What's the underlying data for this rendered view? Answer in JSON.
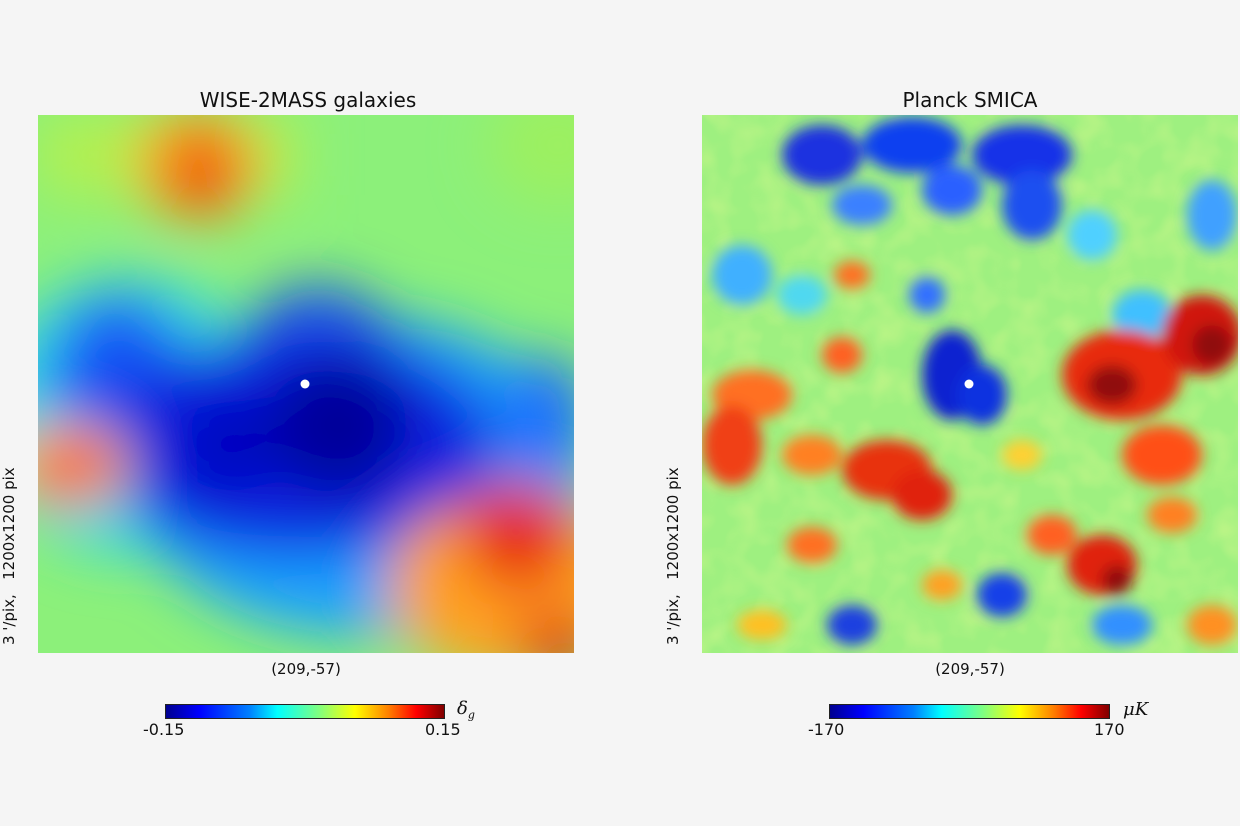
{
  "panels": {
    "left": {
      "title": "WISE-2MASS galaxies",
      "side_label": "3 '/pix,   1200x1200 pix",
      "coord": "(209,-57)",
      "cbar_min": "-0.15",
      "cbar_max": "0.15",
      "unit_symbol": "δ",
      "unit_sub": "g"
    },
    "right": {
      "title": "Planck SMICA",
      "side_label": "3 '/pix,   1200x1200 pix",
      "coord": "(209,-57)",
      "cbar_min": "-170",
      "cbar_max": "170",
      "unit": "μK"
    }
  },
  "colors": {
    "background": "#f5f5f5",
    "marker": "#ffffff",
    "colormap": "jet"
  }
}
